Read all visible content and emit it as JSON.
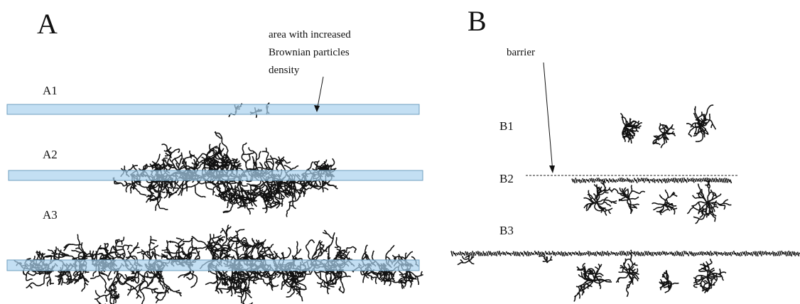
{
  "panels": [
    {
      "label": "A",
      "subpanels": [
        "A1",
        "A2",
        "A3"
      ],
      "annotation": [
        "area with increased",
        "Brownian particles",
        "density"
      ]
    },
    {
      "label": "B",
      "subpanels": [
        "B1",
        "B2",
        "B3"
      ],
      "annotation": [
        "barrier"
      ]
    }
  ]
}
